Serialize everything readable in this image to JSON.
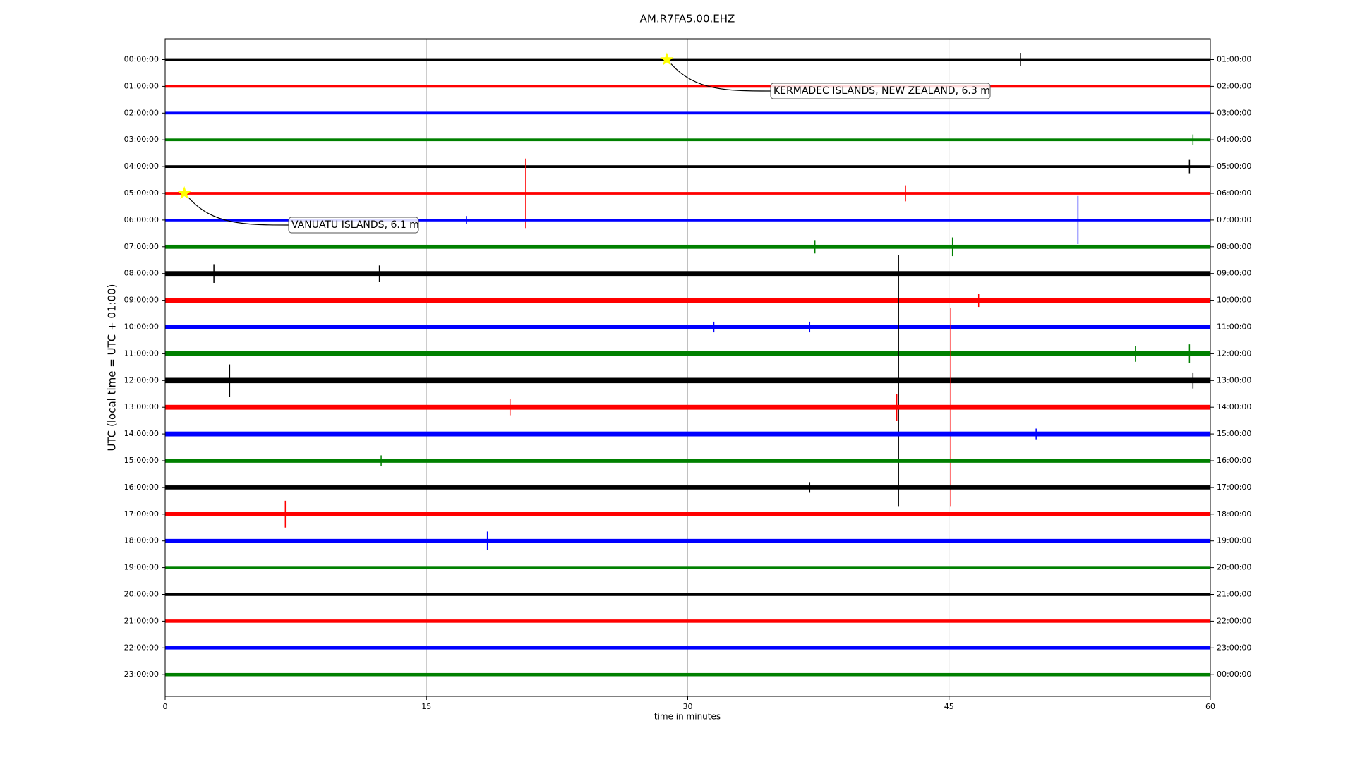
{
  "chart_data": {
    "type": "dayplot",
    "title": "AM.R7FA5.00.EHZ",
    "xlabel": "time in minutes",
    "ylabel": "UTC (local time = UTC + 01:00)",
    "xlim": [
      0,
      60
    ],
    "xticks": [
      0,
      15,
      30,
      45,
      60
    ],
    "grid": true,
    "rows": [
      {
        "label": "00:00:00",
        "right_label": "01:00:00",
        "color": "#000000",
        "noise": 0.1,
        "events": [
          {
            "x": 49.1,
            "amp": 0.25
          }
        ]
      },
      {
        "label": "01:00:00",
        "right_label": "02:00:00",
        "color": "#ff0000",
        "noise": 0.1,
        "events": []
      },
      {
        "label": "02:00:00",
        "right_label": "03:00:00",
        "color": "#0000ff",
        "noise": 0.1,
        "events": []
      },
      {
        "label": "03:00:00",
        "right_label": "04:00:00",
        "color": "#008000",
        "noise": 0.1,
        "events": [
          {
            "x": 59,
            "amp": 0.2
          }
        ]
      },
      {
        "label": "04:00:00",
        "right_label": "05:00:00",
        "color": "#000000",
        "noise": 0.1,
        "events": [
          {
            "x": 58.8,
            "amp": 0.25
          }
        ]
      },
      {
        "label": "05:00:00",
        "right_label": "06:00:00",
        "color": "#ff0000",
        "noise": 0.1,
        "events": [
          {
            "x": 20.7,
            "amp": 1.3
          },
          {
            "x": 42.5,
            "amp": 0.3
          }
        ]
      },
      {
        "label": "06:00:00",
        "right_label": "07:00:00",
        "color": "#0000ff",
        "noise": 0.1,
        "events": [
          {
            "x": 17.3,
            "amp": 0.15
          },
          {
            "x": 52.4,
            "amp": 0.9
          }
        ]
      },
      {
        "label": "07:00:00",
        "right_label": "08:00:00",
        "color": "#008000",
        "noise": 0.15,
        "events": [
          {
            "x": 37.3,
            "amp": 0.25
          },
          {
            "x": 45.2,
            "amp": 0.35
          }
        ]
      },
      {
        "label": "08:00:00",
        "right_label": "09:00:00",
        "color": "#000000",
        "noise": 0.18,
        "events": [
          {
            "x": 2.8,
            "amp": 0.35
          },
          {
            "x": 12.3,
            "amp": 0.3
          }
        ]
      },
      {
        "label": "09:00:00",
        "right_label": "10:00:00",
        "color": "#ff0000",
        "noise": 0.18,
        "events": [
          {
            "x": 46.7,
            "amp": 0.25
          }
        ]
      },
      {
        "label": "10:00:00",
        "right_label": "11:00:00",
        "color": "#0000ff",
        "noise": 0.18,
        "events": [
          {
            "x": 31.5,
            "amp": 0.2
          },
          {
            "x": 37,
            "amp": 0.2
          }
        ]
      },
      {
        "label": "11:00:00",
        "right_label": "12:00:00",
        "color": "#008000",
        "noise": 0.18,
        "events": [
          {
            "x": 55.7,
            "amp": 0.3
          },
          {
            "x": 58.8,
            "amp": 0.35
          }
        ]
      },
      {
        "label": "12:00:00",
        "right_label": "13:00:00",
        "color": "#000000",
        "noise": 0.2,
        "events": [
          {
            "x": 3.7,
            "amp": 0.6
          },
          {
            "x": 42.1,
            "amp": 4.7
          },
          {
            "x": 59,
            "amp": 0.3
          }
        ]
      },
      {
        "label": "13:00:00",
        "right_label": "14:00:00",
        "color": "#ff0000",
        "noise": 0.18,
        "events": [
          {
            "x": 19.8,
            "amp": 0.3
          },
          {
            "x": 42,
            "amp": 0.5
          },
          {
            "x": 45.1,
            "amp": 3.7
          }
        ]
      },
      {
        "label": "14:00:00",
        "right_label": "15:00:00",
        "color": "#0000ff",
        "noise": 0.18,
        "events": [
          {
            "x": 50,
            "amp": 0.2
          }
        ]
      },
      {
        "label": "15:00:00",
        "right_label": "16:00:00",
        "color": "#008000",
        "noise": 0.15,
        "events": [
          {
            "x": 12.4,
            "amp": 0.2
          }
        ]
      },
      {
        "label": "16:00:00",
        "right_label": "17:00:00",
        "color": "#000000",
        "noise": 0.15,
        "events": [
          {
            "x": 37,
            "amp": 0.2
          }
        ]
      },
      {
        "label": "17:00:00",
        "right_label": "18:00:00",
        "color": "#ff0000",
        "noise": 0.15,
        "events": [
          {
            "x": 6.9,
            "amp": 0.5
          }
        ]
      },
      {
        "label": "18:00:00",
        "right_label": "19:00:00",
        "color": "#0000ff",
        "noise": 0.15,
        "events": [
          {
            "x": 18.5,
            "amp": 0.35
          }
        ]
      },
      {
        "label": "19:00:00",
        "right_label": "20:00:00",
        "color": "#008000",
        "noise": 0.12,
        "events": []
      },
      {
        "label": "20:00:00",
        "right_label": "21:00:00",
        "color": "#000000",
        "noise": 0.12,
        "events": []
      },
      {
        "label": "21:00:00",
        "right_label": "22:00:00",
        "color": "#ff0000",
        "noise": 0.12,
        "events": []
      },
      {
        "label": "22:00:00",
        "right_label": "23:00:00",
        "color": "#0000ff",
        "noise": 0.12,
        "events": []
      },
      {
        "label": "23:00:00",
        "right_label": "00:00:00",
        "color": "#008000",
        "noise": 0.12,
        "events": []
      }
    ],
    "annotations": [
      {
        "text": "KERMADEC ISLANDS, NEW ZEALAND, 6.3 m",
        "row": 0,
        "x": 28.8,
        "color": "#ffff00"
      },
      {
        "text": "VANUATU ISLANDS, 6.1 m",
        "row": 5,
        "x": 1.1,
        "color": "#ffff00"
      }
    ]
  }
}
